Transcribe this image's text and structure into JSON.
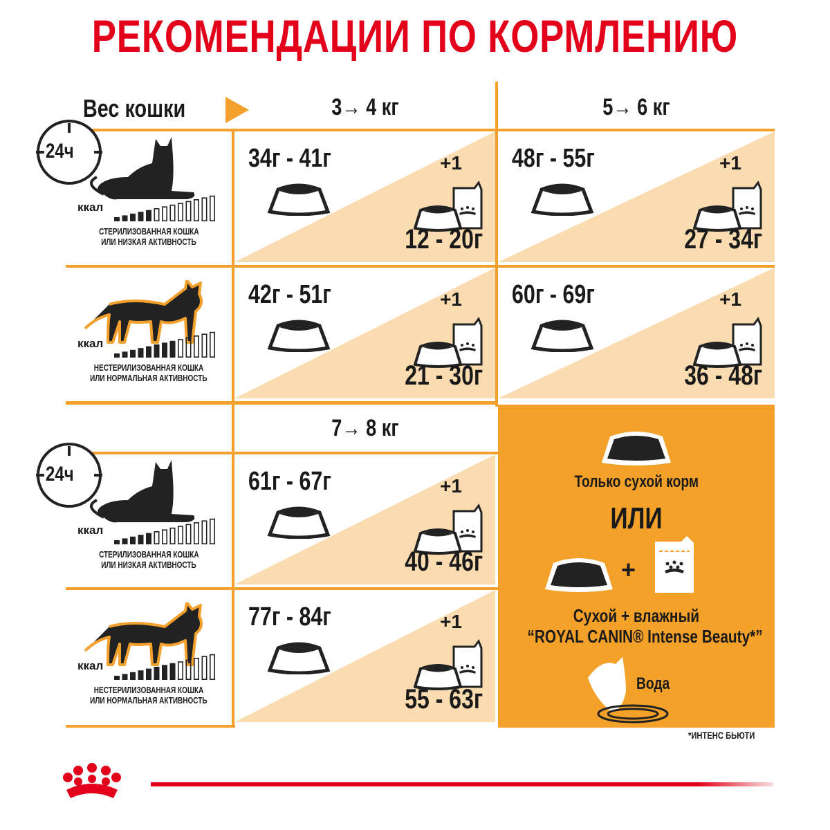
{
  "title": "РЕКОМЕНДАЦИИ ПО КОРМЛЕНИЮ",
  "weight_label": "Вес кошки",
  "weights": [
    "3→ 4 кг",
    "5→ 6 кг",
    "7→ 8 кг"
  ],
  "colors": {
    "brand_red": "#e2001a",
    "orange": "#f4a12a",
    "light_orange": "#fbdcb0"
  },
  "profiles": [
    {
      "clock": "24ч",
      "cat": "lying-cat",
      "kcal": "ккал",
      "kcal_level": "5/13",
      "line1": "СТЕРИЛИЗОВАННАЯ КОШКА",
      "line2": "ИЛИ НИЗКАЯ АКТИВНОСТЬ"
    },
    {
      "cat": "walking-cat",
      "kcal": "ккал",
      "kcal_level": "8/13",
      "line1": "НЕСТЕРИЛИЗОВАННАЯ КОШКА",
      "line2": "ИЛИ НОРМАЛЬНАЯ АКТИВНОСТЬ"
    },
    {
      "clock": "24ч",
      "cat": "lying-cat",
      "kcal": "ккал",
      "kcal_level": "5/13",
      "line1": "СТЕРИЛИЗОВАННАЯ КОШКА",
      "line2": "ИЛИ НИЗКАЯ АКТИВНОСТЬ"
    },
    {
      "cat": "walking-cat",
      "kcal": "ккал",
      "kcal_level": "8/13",
      "line1": "НЕСТЕРИЛИЗОВАННАЯ КОШКА",
      "line2": "ИЛИ НОРМАЛЬНАЯ АКТИВНОСТЬ"
    }
  ],
  "cells": [
    {
      "dry": "34г - 41г",
      "plus": "+1",
      "wet": "12 - 20г"
    },
    {
      "dry": "48г - 55г",
      "plus": "+1",
      "wet": "27 - 34г"
    },
    {
      "dry": "42г - 51г",
      "plus": "+1",
      "wet": "21 - 30г"
    },
    {
      "dry": "60г - 69г",
      "plus": "+1",
      "wet": "36 - 48г"
    },
    {
      "dry": "61г - 67г",
      "plus": "+1",
      "wet": "40 - 46г"
    },
    {
      "dry": "77г - 84г",
      "plus": "+1",
      "wet": "55 - 63г"
    }
  ],
  "panel": {
    "dry_only": "Только сухой корм",
    "or": "ИЛИ",
    "plus": "+",
    "mixed_line1": "Сухой + влажный",
    "mixed_line2": "“ROYAL CANIN® Intense Beauty*”",
    "water": "Вода"
  },
  "footnote": "*ИНТЕНС БЬЮТИ"
}
